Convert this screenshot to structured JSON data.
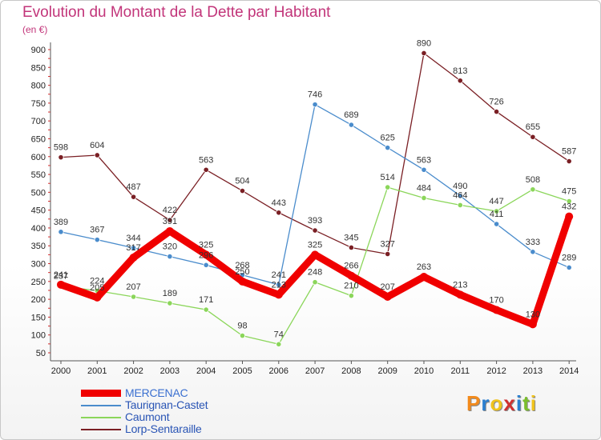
{
  "title": "Evolution du Montant de la Dette par Habitant",
  "subtitle": "(en €)",
  "brand": {
    "letters": [
      "P",
      "r",
      "o",
      "x",
      "i",
      "t",
      "i"
    ],
    "colors": [
      "#f28a1c",
      "#2a7fd0",
      "#f0c31c",
      "#d03030",
      "#2a7fd0",
      "#7abf2a",
      "#f0c31c"
    ]
  },
  "chart_data": {
    "type": "line",
    "categories": [
      "2000",
      "2001",
      "2002",
      "2003",
      "2004",
      "2005",
      "2006",
      "2007",
      "2008",
      "2009",
      "2010",
      "2011",
      "2012",
      "2013",
      "2014"
    ],
    "y_ticks": [
      "50",
      "100",
      "150",
      "200",
      "250",
      "300",
      "350",
      "400",
      "450",
      "500",
      "550",
      "600",
      "650",
      "700",
      "750",
      "800",
      "850",
      "900"
    ],
    "ylim": [
      50,
      900
    ],
    "grid": false,
    "legend_position": "bottom-left",
    "series": [
      {
        "name": "Lorp-Sentaraille",
        "color": "#7a1f24",
        "values": [
          598,
          604,
          487,
          422,
          563,
          504,
          443,
          393,
          345,
          327,
          890,
          813,
          726,
          655,
          587
        ],
        "labels": [
          "598",
          "604",
          "487",
          "422",
          "563",
          "504",
          "443",
          "393",
          "345",
          "327",
          "890",
          "813",
          "726",
          "655",
          "587"
        ]
      },
      {
        "name": "Taurignan-Castet",
        "color": "#4a8ccc",
        "values": [
          389,
          367,
          344,
          320,
          296,
          268,
          241,
          746,
          689,
          625,
          563,
          490,
          411,
          333,
          289
        ],
        "labels": [
          "389",
          "367",
          "344",
          "320",
          "296",
          "268",
          "241",
          "746",
          "689",
          "625",
          "563",
          "490",
          "411",
          "333",
          "289"
        ]
      },
      {
        "name": "Caumont",
        "color": "#8bd65a",
        "values": [
          237,
          224,
          207,
          189,
          171,
          98,
          74,
          248,
          210,
          514,
          484,
          464,
          447,
          508,
          475
        ],
        "labels": [
          "237",
          "224",
          "207",
          "189",
          "171",
          "98",
          "74",
          "248",
          "210",
          "514",
          "484",
          "464",
          "447",
          "508",
          "475"
        ]
      },
      {
        "name": "MERCENAC",
        "color": "#f00000",
        "values": [
          241,
          205,
          317,
          391,
          325,
          250,
          213,
          325,
          266,
          207,
          263,
          213,
          170,
          130,
          432
        ],
        "labels": [
          "241",
          "205",
          "317",
          "391",
          "325",
          "250",
          "213",
          "325",
          "266",
          "207",
          "263",
          "213",
          "170",
          "130",
          "432"
        ]
      }
    ],
    "legend_order": [
      "MERCENAC",
      "Taurignan-Castet",
      "Caumont",
      "Lorp-Sentaraille"
    ]
  }
}
